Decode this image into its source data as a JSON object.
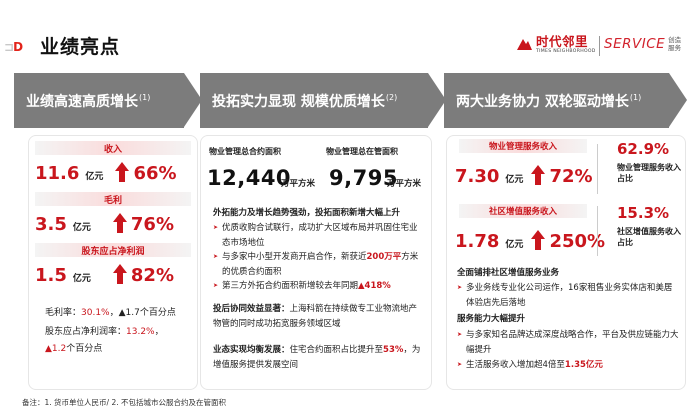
{
  "header": {
    "title": "业绩亮点",
    "logo_cn": "时代邻里",
    "logo_en": "TIMES NEIGHBORHOOD",
    "logo2_en": "SERVICE",
    "logo2_cn": "创造服务"
  },
  "bands": [
    {
      "title": "业绩高速高质增长",
      "sup": "(1)"
    },
    {
      "title": "投拓实力显现  规模优质增长",
      "sup": "(2)"
    },
    {
      "title": "两大业务协力  双轮驱动增长",
      "sup": "(1)"
    }
  ],
  "col1": {
    "items": [
      {
        "label": "收入",
        "value": "11.6",
        "unit": "亿元",
        "growth": "66%"
      },
      {
        "label": "毛利",
        "value": "3.5",
        "unit": "亿元",
        "growth": "76%"
      },
      {
        "label": "股东应占净利润",
        "value": "1.5",
        "unit": "亿元",
        "growth": "82%"
      }
    ],
    "gm_label": "毛利率：",
    "gm_value": "30.1%",
    "gm_change": "，▲1.7个百分点",
    "np_label": "股东应占净利润率：",
    "np_value": "13.2%",
    "np_suffix": "，",
    "np_change": "▲1.2",
    "np_change_unit": "个百分点"
  },
  "col2": {
    "contract_label": "物业管理总合约面积",
    "contract_value": "12,440",
    "contract_unit": "万平方米",
    "managed_label": "物业管理总在管面积",
    "managed_value": "9,795",
    "managed_unit": "万平方米",
    "s1_title": "外拓能力及增长趋势强劲，投拓面积新增大幅上升",
    "s1_b1": "优质收购合试联行，成功扩大区域布局并巩固住宅业态市场地位",
    "s1_b2a": "与多家中小型开发商开启合作，新获近",
    "s1_b2b": "200万平",
    "s1_b2c": "方米的优质合约面积",
    "s1_b3a": "第三方外拓合约面积新增较去年同期",
    "s1_b3b": "▲418%",
    "s2_title": "投后协同效益显著：",
    "s2_text": "上海科箭在持续做专工业物流地产物管的同时成功拓宽服务领域区域",
    "s3_title": "业态实现均衡发展：",
    "s3_text": "住宅合约面积占比提升至",
    "s3_value": "53%",
    "s3_tail": "，为增值服务提供发展空间"
  },
  "col3": {
    "items": [
      {
        "label": "物业管理服务收入",
        "value": "7.30",
        "unit": "亿元",
        "growth": "72%",
        "share": "62.9%",
        "share_label": "物业管理服务收入占比"
      },
      {
        "label": "社区增值服务收入",
        "value": "1.78",
        "unit": "亿元",
        "growth": "250%",
        "share": "15.3%",
        "share_label": "社区增值服务收入占比"
      }
    ],
    "s1_title": "全面铺排社区增值服务业务",
    "s1_b1": "多业务线专业化公司运作，16家租售业务实体店和美居体验店先后落地",
    "s2_title": "服务能力大幅提升",
    "s2_b1": "与多家知名品牌达成深度战略合作，平台及供应链能力大幅提升",
    "s2_b2a": "生活服务收入增加超4倍至",
    "s2_b2b": "1.35亿元"
  },
  "footnote": "备注：1. 货币单位人民币/ 2. 不包括城市公服合约及在管面积",
  "colors": {
    "accent": "#c9161d",
    "band": "#7c7c7c"
  }
}
